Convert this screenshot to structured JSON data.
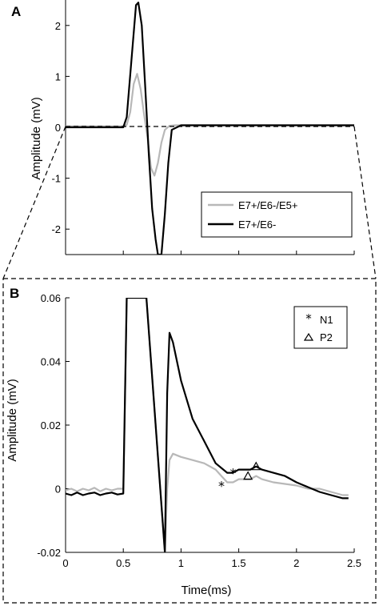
{
  "colors": {
    "gray": "#b8b8b8",
    "black": "#000000"
  },
  "chart_data": [
    {
      "panel_label": "A",
      "type": "line",
      "title": "",
      "xlabel": "",
      "ylabel": "Amplitude (mV)",
      "xlim": [
        0,
        2.5
      ],
      "ylim": [
        -2.5,
        2.5
      ],
      "yticks": [
        -2,
        -1,
        0,
        1,
        2
      ],
      "ytick_labels": [
        "-2",
        "-1",
        "0",
        "1",
        "2"
      ],
      "xticks": [
        0,
        0.5,
        1,
        1.5,
        2,
        2.5
      ],
      "show_xtick_labels": false,
      "legend_position": "lower-right",
      "series": [
        {
          "name": "E7+/E6-/E5+",
          "color": "#b8b8b8",
          "x": [
            0,
            0.5,
            0.53,
            0.56,
            0.59,
            0.62,
            0.65,
            0.68,
            0.71,
            0.74,
            0.77,
            0.8,
            0.83,
            0.86,
            0.9,
            0.95,
            2.5
          ],
          "y": [
            0.02,
            0.02,
            0.05,
            0.3,
            0.85,
            1.05,
            0.75,
            0.25,
            -0.2,
            -0.8,
            -0.95,
            -0.7,
            -0.3,
            -0.05,
            0.03,
            0.04,
            0.04
          ]
        },
        {
          "name": "E7+/E6-",
          "color": "#000000",
          "x": [
            0,
            0.5,
            0.53,
            0.57,
            0.61,
            0.63,
            0.66,
            0.69,
            0.72,
            0.75,
            0.78,
            0.8,
            0.83,
            0.86,
            0.89,
            0.92,
            1.0,
            2.5
          ],
          "y": [
            0.0,
            0.0,
            0.2,
            1.3,
            2.4,
            2.45,
            2.0,
            0.8,
            -0.5,
            -1.6,
            -2.2,
            -2.5,
            -2.5,
            -1.7,
            -0.7,
            -0.05,
            0.04,
            0.04
          ]
        }
      ]
    },
    {
      "panel_label": "B",
      "type": "line",
      "title": "",
      "xlabel": "Time(ms)",
      "ylabel": "Amplitude (mV)",
      "xlim": [
        0,
        2.5
      ],
      "ylim": [
        -0.02,
        0.06
      ],
      "yticks": [
        -0.02,
        0,
        0.02,
        0.04,
        0.06
      ],
      "ytick_labels": [
        "-0.02",
        "0",
        "0.02",
        "0.04",
        "0.06"
      ],
      "xticks": [
        0,
        0.5,
        1,
        1.5,
        2,
        2.5
      ],
      "xtick_labels": [
        "0",
        "0.5",
        "1",
        "1.5",
        "2",
        "2.5"
      ],
      "legend_position": "top-right",
      "markers": [
        {
          "name": "N1",
          "symbol": "asterisk"
        },
        {
          "name": "P2",
          "symbol": "triangle"
        }
      ],
      "series": [
        {
          "name": "E7+/E6-/E5+",
          "color": "#b8b8b8",
          "x": [
            0,
            0.05,
            0.1,
            0.15,
            0.2,
            0.25,
            0.3,
            0.35,
            0.4,
            0.45,
            0.5,
            0.53,
            0.7,
            0.86,
            0.88,
            0.9,
            0.93,
            1.0,
            1.1,
            1.2,
            1.3,
            1.35,
            1.4,
            1.45,
            1.5,
            1.55,
            1.6,
            1.65,
            1.7,
            1.8,
            1.9,
            2.0,
            2.1,
            2.2,
            2.3,
            2.4,
            2.45
          ],
          "y": [
            -0.0005,
            0.0,
            -0.0008,
            0.0,
            -0.0005,
            0.0003,
            -0.0008,
            0.0,
            -0.0005,
            0.0,
            0.0,
            0.06,
            0.06,
            -0.02,
            0.0,
            0.009,
            0.011,
            0.01,
            0.009,
            0.008,
            0.006,
            0.004,
            0.002,
            0.002,
            0.003,
            0.003,
            0.003,
            0.004,
            0.003,
            0.002,
            0.0015,
            0.001,
            0.0,
            0.0,
            -0.001,
            -0.002,
            -0.002
          ]
        },
        {
          "name": "E7+/E6-",
          "color": "#000000",
          "x": [
            0,
            0.05,
            0.1,
            0.15,
            0.2,
            0.25,
            0.3,
            0.35,
            0.4,
            0.45,
            0.5,
            0.53,
            0.7,
            0.86,
            0.88,
            0.9,
            0.93,
            1.0,
            1.1,
            1.2,
            1.3,
            1.4,
            1.45,
            1.5,
            1.55,
            1.6,
            1.65,
            1.7,
            1.8,
            1.9,
            2.0,
            2.1,
            2.2,
            2.3,
            2.4,
            2.45
          ],
          "y": [
            -0.0015,
            -0.002,
            -0.0012,
            -0.002,
            -0.0015,
            -0.0012,
            -0.002,
            -0.0015,
            -0.0012,
            -0.0018,
            -0.0015,
            0.06,
            0.06,
            -0.02,
            0.03,
            0.049,
            0.046,
            0.034,
            0.022,
            0.015,
            0.008,
            0.005,
            0.005,
            0.006,
            0.006,
            0.006,
            0.007,
            0.006,
            0.005,
            0.004,
            0.002,
            0.0005,
            -0.001,
            -0.002,
            -0.003,
            -0.003
          ]
        }
      ],
      "n1_points": [
        {
          "x": 1.35,
          "y": 0.001,
          "color": "#000000"
        },
        {
          "x": 1.45,
          "y": 0.005,
          "color": "#000000"
        }
      ],
      "p2_points": [
        {
          "x": 1.58,
          "y": 0.004,
          "color": "#000000"
        },
        {
          "x": 1.65,
          "y": 0.007,
          "color": "#000000"
        }
      ]
    }
  ]
}
